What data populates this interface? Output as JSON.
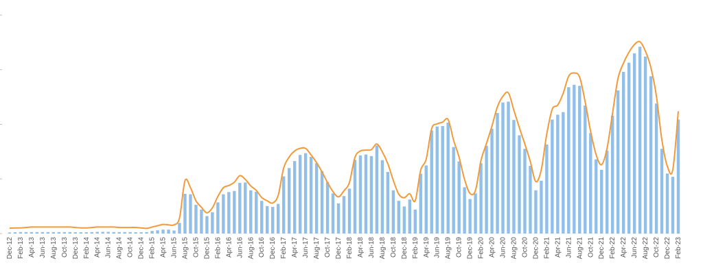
{
  "chart_data": {
    "type": "bar",
    "title": "",
    "xlabel": "",
    "ylabel": "",
    "ylim": [
      0,
      1000
    ],
    "grid": false,
    "legend": "none",
    "bar_color": "#92bfe8",
    "line_color": "#f29a3a",
    "tick_labels": [
      "Dec-12",
      "Feb-13",
      "Apr-13",
      "Jun-13",
      "Aug-13",
      "Oct-13",
      "Dec-13",
      "Feb-14",
      "Apr-14",
      "Jun-14",
      "Aug-14",
      "Oct-14",
      "Dec-14",
      "Feb-15",
      "Apr-15",
      "Jun-15",
      "Aug-15",
      "Oct-15",
      "Dec-15",
      "Feb-16",
      "Apr-16",
      "Jun-16",
      "Aug-16",
      "Oct-16",
      "Dec-16",
      "Feb-17",
      "Apr-17",
      "Jun-17",
      "Aug-17",
      "Oct-17",
      "Dec-17",
      "Feb-18",
      "Apr-18",
      "Jun-18",
      "Aug-18",
      "Oct-18",
      "Dec-18",
      "Feb-19",
      "Apr-19",
      "Jun-19",
      "Aug-19",
      "Oct-19",
      "Dec-19",
      "Feb-20",
      "Apr-20",
      "Jun-20",
      "Aug-20",
      "Oct-20",
      "Dec-20",
      "Feb-21",
      "Apr-21",
      "Jun-21",
      "Aug-21",
      "Oct-21",
      "Dec-21",
      "Feb-22",
      "Apr-22",
      "Jun-22",
      "Aug-22",
      "Oct-22",
      "Dec-22",
      "Feb-23"
    ],
    "categories": [
      "Dec-12",
      "Jan-13",
      "Feb-13",
      "Mar-13",
      "Apr-13",
      "May-13",
      "Jun-13",
      "Jul-13",
      "Aug-13",
      "Sep-13",
      "Oct-13",
      "Nov-13",
      "Dec-13",
      "Jan-14",
      "Feb-14",
      "Mar-14",
      "Apr-14",
      "May-14",
      "Jun-14",
      "Jul-14",
      "Aug-14",
      "Sep-14",
      "Oct-14",
      "Nov-14",
      "Dec-14",
      "Jan-15",
      "Feb-15",
      "Mar-15",
      "Apr-15",
      "May-15",
      "Jun-15",
      "Jul-15",
      "Aug-15",
      "Sep-15",
      "Oct-15",
      "Nov-15",
      "Dec-15",
      "Jan-16",
      "Feb-16",
      "Mar-16",
      "Apr-16",
      "May-16",
      "Jun-16",
      "Jul-16",
      "Aug-16",
      "Sep-16",
      "Oct-16",
      "Nov-16",
      "Dec-16",
      "Jan-17",
      "Feb-17",
      "Mar-17",
      "Apr-17",
      "May-17",
      "Jun-17",
      "Jul-17",
      "Aug-17",
      "Sep-17",
      "Oct-17",
      "Nov-17",
      "Dec-17",
      "Jan-18",
      "Feb-18",
      "Mar-18",
      "Apr-18",
      "May-18",
      "Jun-18",
      "Jul-18",
      "Aug-18",
      "Sep-18",
      "Oct-18",
      "Nov-18",
      "Dec-18",
      "Jan-19",
      "Feb-19",
      "Mar-19",
      "Apr-19",
      "May-19",
      "Jun-19",
      "Jul-19",
      "Aug-19",
      "Sep-19",
      "Oct-19",
      "Nov-19",
      "Dec-19",
      "Jan-20",
      "Feb-20",
      "Mar-20",
      "Apr-20",
      "May-20",
      "Jun-20",
      "Jul-20",
      "Aug-20",
      "Sep-20",
      "Oct-20",
      "Nov-20",
      "Dec-20",
      "Jan-21",
      "Feb-21",
      "Mar-21",
      "Apr-21",
      "May-21",
      "Jun-21",
      "Jul-21",
      "Aug-21",
      "Sep-21",
      "Oct-21",
      "Nov-21",
      "Dec-21",
      "Jan-22",
      "Feb-22",
      "Mar-22",
      "Apr-22",
      "May-22",
      "Jun-22",
      "Jul-22",
      "Aug-22",
      "Sep-22",
      "Oct-22",
      "Nov-22",
      "Dec-22",
      "Jan-23",
      "Feb-23"
    ],
    "series": [
      {
        "type": "bar",
        "values": [
          5,
          6,
          7,
          7,
          7,
          7,
          7,
          7,
          7,
          7,
          7,
          7,
          6,
          6,
          6,
          7,
          8,
          8,
          8,
          7,
          7,
          7,
          7,
          6,
          6,
          7,
          12,
          15,
          18,
          18,
          14,
          49,
          182,
          180,
          132,
          110,
          80,
          98,
          143,
          180,
          190,
          195,
          232,
          234,
          198,
          192,
          150,
          126,
          122,
          136,
          262,
          300,
          332,
          360,
          368,
          351,
          322,
          286,
          236,
          184,
          138,
          172,
          206,
          338,
          358,
          362,
          355,
          403,
          336,
          282,
          198,
          150,
          124,
          156,
          110,
          274,
          312,
          472,
          490,
          492,
          508,
          396,
          330,
          212,
          158,
          184,
          322,
          402,
          480,
          552,
          600,
          604,
          520,
          450,
          388,
          310,
          198,
          242,
          408,
          522,
          544,
          556,
          670,
          681,
          676,
          586,
          460,
          340,
          292,
          380,
          540,
          655,
          740,
          782,
          825,
          855,
          810,
          720,
          595,
          388,
          275,
          260,
          522
        ]
      },
      {
        "type": "line",
        "values": [
          25,
          26,
          26,
          28,
          30,
          30,
          30,
          30,
          30,
          30,
          30,
          30,
          28,
          26,
          26,
          28,
          30,
          30,
          30,
          30,
          28,
          28,
          28,
          28,
          26,
          24,
          30,
          36,
          42,
          40,
          40,
          72,
          242,
          210,
          150,
          120,
          95,
          118,
          170,
          210,
          220,
          235,
          265,
          248,
          218,
          198,
          165,
          150,
          140,
          175,
          300,
          350,
          378,
          390,
          390,
          360,
          325,
          282,
          234,
          192,
          168,
          196,
          234,
          348,
          378,
          382,
          384,
          410,
          374,
          320,
          244,
          180,
          164,
          182,
          150,
          290,
          340,
          480,
          502,
          510,
          522,
          428,
          350,
          248,
          184,
          198,
          334,
          412,
          492,
          580,
          628,
          644,
          565,
          485,
          410,
          330,
          238,
          292,
          455,
          569,
          588,
          642,
          720,
          735,
          716,
          604,
          468,
          362,
          315,
          390,
          550,
          710,
          780,
          830,
          865,
          878,
          835,
          760,
          630,
          430,
          308,
          292,
          560
        ]
      }
    ]
  }
}
